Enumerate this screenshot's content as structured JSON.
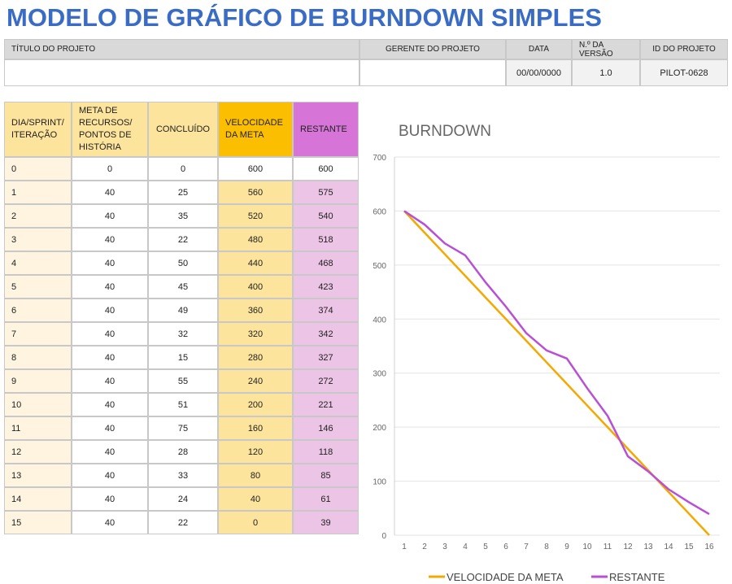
{
  "header": {
    "title": "MODELO DE GRÁFICO DE BURNDOWN SIMPLES"
  },
  "project": {
    "labels": [
      "TÍTULO DO PROJETO",
      "GERENTE DO PROJETO",
      "DATA",
      "N.º DA VERSÃO",
      "ID DO PROJETO"
    ],
    "date": "00/00/0000",
    "version": "1.0",
    "id": "PILOT-0628"
  },
  "table": {
    "columns": [
      "DIA/SPRINT/ ITERAÇÃO",
      "META DE RECURSOS/ PONTOS DE HISTÓRIA",
      "CONCLUÍDO",
      "VELOCIDADE DA META",
      "RESTANTE"
    ],
    "rows": [
      [
        0,
        0,
        0,
        600,
        600
      ],
      [
        1,
        40,
        25,
        560,
        575
      ],
      [
        2,
        40,
        35,
        520,
        540
      ],
      [
        3,
        40,
        22,
        480,
        518
      ],
      [
        4,
        40,
        50,
        440,
        468
      ],
      [
        5,
        40,
        45,
        400,
        423
      ],
      [
        6,
        40,
        49,
        360,
        374
      ],
      [
        7,
        40,
        32,
        320,
        342
      ],
      [
        8,
        40,
        15,
        280,
        327
      ],
      [
        9,
        40,
        55,
        240,
        272
      ],
      [
        10,
        40,
        51,
        200,
        221
      ],
      [
        11,
        40,
        75,
        160,
        146
      ],
      [
        12,
        40,
        28,
        120,
        118
      ],
      [
        13,
        40,
        33,
        80,
        85
      ],
      [
        14,
        40,
        24,
        40,
        61
      ],
      [
        15,
        40,
        22,
        0,
        39
      ]
    ]
  },
  "chart_data": {
    "type": "line",
    "title": "BURNDOWN",
    "categories": [
      1,
      2,
      3,
      4,
      5,
      6,
      7,
      8,
      9,
      10,
      11,
      12,
      13,
      14,
      15,
      16
    ],
    "series": [
      {
        "name": "VELOCIDADE DA META",
        "color": "#f5a800",
        "values": [
          600,
          560,
          520,
          480,
          440,
          400,
          360,
          320,
          280,
          240,
          200,
          160,
          120,
          80,
          40,
          0
        ]
      },
      {
        "name": "RESTANTE",
        "color": "#b84fd6",
        "values": [
          600,
          575,
          540,
          518,
          468,
          423,
          374,
          342,
          327,
          272,
          221,
          146,
          118,
          85,
          61,
          39
        ]
      }
    ],
    "ylim": [
      0,
      700
    ],
    "yticks": [
      0,
      100,
      200,
      300,
      400,
      500,
      600,
      700
    ],
    "grid": true,
    "legend": "bottom"
  }
}
